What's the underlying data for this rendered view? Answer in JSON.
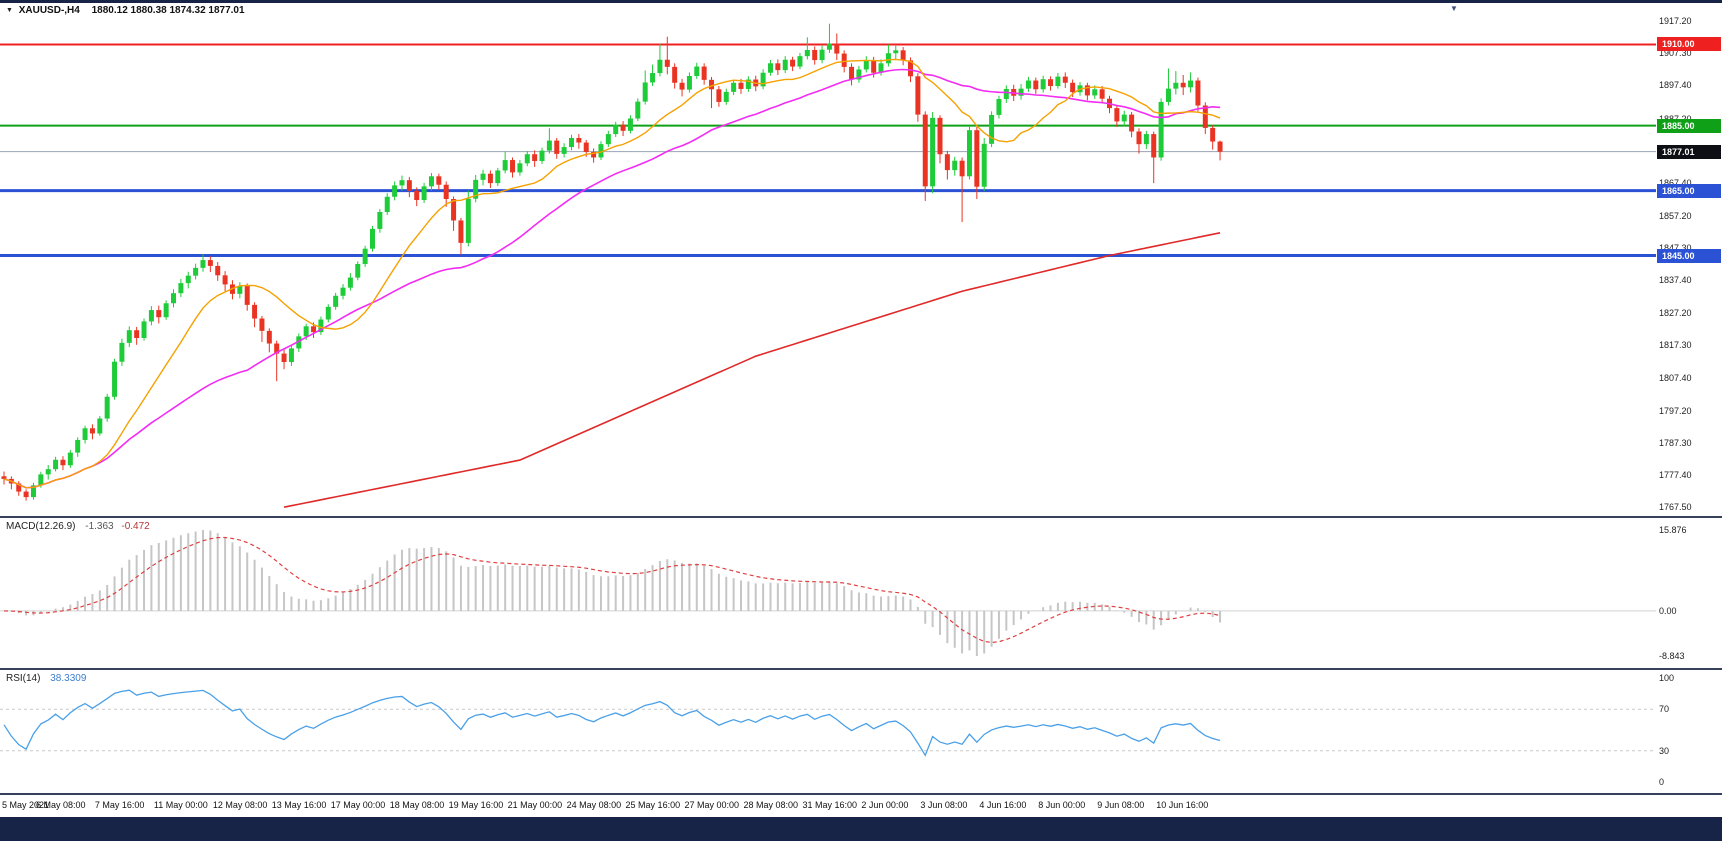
{
  "header": {
    "symbol": "XAUUSD-,H4",
    "ohlc": "1880.12 1880.38 1874.32 1877.01"
  },
  "colors": {
    "bull": "#1ecb38",
    "bear": "#ea3423",
    "ma_fast": "#f5a100",
    "ma_mid": "#f32cf3",
    "ma_slow": "#e02929",
    "macd_hist": "#c6c6c6",
    "macd_signal": "#e04040",
    "rsi": "#4aa0e8",
    "resistance_red": "#ee2020",
    "support_green": "#0fa018",
    "support_blue": "#2b52d4",
    "current_price_badge": "#0d0f14"
  },
  "price_axis": {
    "ticks": [
      "1917.20",
      "1907.30",
      "1897.40",
      "1887.20",
      "1867.40",
      "1857.20",
      "1847.30",
      "1837.40",
      "1827.20",
      "1817.30",
      "1807.40",
      "1797.20",
      "1787.30",
      "1777.40",
      "1767.50"
    ]
  },
  "price_lines": [
    {
      "price": 1910.0,
      "label": "1910.00",
      "color": "#ee2020",
      "width": 2
    },
    {
      "price": 1885.0,
      "label": "1885.00",
      "color": "#0fa018",
      "width": 2
    },
    {
      "price": 1877.01,
      "label": "1877.01",
      "color": "#0d0f14",
      "line_color": "#98a2b4",
      "width": 1
    },
    {
      "price": 1865.0,
      "label": "1865.00",
      "color": "#2b52d4",
      "width": 3
    },
    {
      "price": 1845.0,
      "label": "1845.00",
      "color": "#2b52d4",
      "width": 3
    }
  ],
  "chart_data": {
    "type": "candlestick",
    "symbol": "XAUUSD",
    "timeframe": "H4",
    "title": "XAUUSD-,H4 1880.12 1880.38 1874.32 1877.01",
    "y_range": [
      1765,
      1920
    ],
    "x_label_every_n_candles": 8,
    "x_labels": [
      "5 May 2021",
      "6 May 08:00",
      "7 May 16:00",
      "11 May 00:00",
      "12 May 08:00",
      "13 May 16:00",
      "17 May 00:00",
      "18 May 08:00",
      "19 May 16:00",
      "21 May 00:00",
      "24 May 08:00",
      "25 May 16:00",
      "27 May 00:00",
      "28 May 08:00",
      "31 May 16:00",
      "2 Jun 00:00",
      "3 Jun 08:00",
      "4 Jun 16:00",
      "8 Jun 00:00",
      "9 Jun 08:00",
      "10 Jun 16:00"
    ],
    "candles_ochl": [
      [
        1777.0,
        1776.2,
        1774.5,
        1778.5
      ],
      [
        1776.2,
        1774.8,
        1773.0,
        1777.0
      ],
      [
        1774.8,
        1772.3,
        1771.0,
        1775.5
      ],
      [
        1772.3,
        1770.6,
        1769.5,
        1773.0
      ],
      [
        1770.6,
        1774.2,
        1769.8,
        1775.0
      ],
      [
        1774.2,
        1777.6,
        1773.5,
        1778.4
      ],
      [
        1777.6,
        1779.2,
        1776.0,
        1780.5
      ],
      [
        1779.2,
        1782.1,
        1778.5,
        1783.0
      ],
      [
        1782.1,
        1780.4,
        1778.9,
        1783.2
      ],
      [
        1780.4,
        1784.3,
        1779.6,
        1785.1
      ],
      [
        1784.3,
        1788.2,
        1783.0,
        1789.0
      ],
      [
        1788.2,
        1791.8,
        1787.1,
        1792.6
      ],
      [
        1791.8,
        1790.2,
        1788.4,
        1793.0
      ],
      [
        1790.2,
        1794.8,
        1789.5,
        1795.6
      ],
      [
        1794.8,
        1801.5,
        1793.8,
        1802.4
      ],
      [
        1801.5,
        1812.3,
        1800.6,
        1813.2
      ],
      [
        1812.3,
        1818.1,
        1811.0,
        1819.4
      ],
      [
        1818.1,
        1822.0,
        1816.8,
        1823.2
      ],
      [
        1822.0,
        1819.6,
        1817.5,
        1823.0
      ],
      [
        1819.6,
        1824.7,
        1818.8,
        1825.6
      ],
      [
        1824.7,
        1828.2,
        1823.5,
        1829.4
      ],
      [
        1828.2,
        1826.0,
        1824.1,
        1829.6
      ],
      [
        1826.0,
        1830.3,
        1825.2,
        1831.2
      ],
      [
        1830.3,
        1833.4,
        1829.0,
        1834.6
      ],
      [
        1833.4,
        1836.5,
        1832.2,
        1837.8
      ],
      [
        1836.5,
        1838.8,
        1834.9,
        1840.0
      ],
      [
        1838.8,
        1841.2,
        1837.6,
        1842.5
      ],
      [
        1841.2,
        1843.6,
        1840.0,
        1845.4
      ],
      [
        1843.6,
        1841.8,
        1839.9,
        1844.8
      ],
      [
        1841.8,
        1838.9,
        1837.2,
        1843.0
      ],
      [
        1838.9,
        1836.1,
        1834.0,
        1840.2
      ],
      [
        1836.1,
        1833.2,
        1831.5,
        1837.4
      ],
      [
        1833.2,
        1835.6,
        1831.8,
        1836.8
      ],
      [
        1835.6,
        1829.8,
        1828.0,
        1836.4
      ],
      [
        1829.8,
        1825.6,
        1822.9,
        1830.6
      ],
      [
        1825.6,
        1821.8,
        1818.4,
        1826.4
      ],
      [
        1821.8,
        1817.9,
        1815.2,
        1822.6
      ],
      [
        1817.9,
        1814.8,
        1806.3,
        1818.8
      ],
      [
        1814.8,
        1812.2,
        1810.0,
        1816.0
      ],
      [
        1812.2,
        1816.4,
        1811.0,
        1817.2
      ],
      [
        1816.4,
        1820.1,
        1815.3,
        1821.0
      ],
      [
        1820.1,
        1823.2,
        1819.0,
        1824.0
      ],
      [
        1823.2,
        1821.4,
        1819.6,
        1824.4
      ],
      [
        1821.4,
        1825.3,
        1820.5,
        1826.2
      ],
      [
        1825.3,
        1829.2,
        1824.4,
        1830.0
      ],
      [
        1829.2,
        1832.6,
        1828.3,
        1833.5
      ],
      [
        1832.6,
        1835.1,
        1831.5,
        1836.2
      ],
      [
        1835.1,
        1838.2,
        1834.2,
        1839.6
      ],
      [
        1838.2,
        1842.4,
        1837.4,
        1843.2
      ],
      [
        1842.4,
        1847.1,
        1841.5,
        1848.0
      ],
      [
        1847.1,
        1853.2,
        1846.2,
        1854.1
      ],
      [
        1853.2,
        1858.4,
        1852.0,
        1859.3
      ],
      [
        1858.4,
        1863.1,
        1857.5,
        1864.2
      ],
      [
        1863.1,
        1866.6,
        1862.0,
        1867.8
      ],
      [
        1866.6,
        1868.2,
        1864.9,
        1869.6
      ],
      [
        1868.2,
        1864.9,
        1863.0,
        1869.2
      ],
      [
        1864.9,
        1862.1,
        1860.2,
        1866.0
      ],
      [
        1862.1,
        1866.3,
        1861.2,
        1867.4
      ],
      [
        1866.3,
        1869.4,
        1865.0,
        1870.4
      ],
      [
        1869.4,
        1866.8,
        1865.2,
        1870.2
      ],
      [
        1866.8,
        1862.4,
        1860.0,
        1867.8
      ],
      [
        1862.4,
        1855.8,
        1852.6,
        1863.2
      ],
      [
        1855.8,
        1848.9,
        1845.2,
        1856.6
      ],
      [
        1848.9,
        1862.5,
        1847.8,
        1865.0
      ],
      [
        1862.5,
        1868.3,
        1861.4,
        1869.8
      ],
      [
        1868.3,
        1870.2,
        1866.6,
        1871.4
      ],
      [
        1870.2,
        1867.3,
        1865.8,
        1871.2
      ],
      [
        1867.3,
        1871.2,
        1866.4,
        1872.0
      ],
      [
        1871.2,
        1874.4,
        1870.3,
        1877.0
      ],
      [
        1874.4,
        1870.6,
        1869.0,
        1875.2
      ],
      [
        1870.6,
        1873.4,
        1869.6,
        1874.4
      ],
      [
        1873.4,
        1876.2,
        1872.5,
        1877.2
      ],
      [
        1876.2,
        1874.1,
        1872.3,
        1877.4
      ],
      [
        1874.1,
        1877.3,
        1873.2,
        1878.2
      ],
      [
        1877.3,
        1880.4,
        1876.4,
        1884.2
      ],
      [
        1880.4,
        1876.3,
        1874.8,
        1881.2
      ],
      [
        1876.3,
        1878.4,
        1875.2,
        1879.6
      ],
      [
        1878.4,
        1881.2,
        1877.4,
        1882.2
      ],
      [
        1881.2,
        1879.8,
        1877.9,
        1882.4
      ],
      [
        1879.8,
        1876.9,
        1875.4,
        1880.6
      ],
      [
        1876.9,
        1875.2,
        1873.6,
        1878.0
      ],
      [
        1875.2,
        1879.3,
        1874.4,
        1880.2
      ],
      [
        1879.3,
        1882.4,
        1878.4,
        1883.4
      ],
      [
        1882.4,
        1885.3,
        1881.5,
        1886.2
      ],
      [
        1885.3,
        1883.4,
        1881.8,
        1886.4
      ],
      [
        1883.4,
        1887.2,
        1882.6,
        1888.2
      ],
      [
        1887.2,
        1892.4,
        1886.4,
        1893.4
      ],
      [
        1892.4,
        1898.3,
        1891.5,
        1902.0
      ],
      [
        1898.3,
        1901.2,
        1897.2,
        1903.8
      ],
      [
        1901.2,
        1905.3,
        1900.2,
        1910.2
      ],
      [
        1905.3,
        1903.1,
        1900.8,
        1912.4
      ],
      [
        1903.1,
        1898.2,
        1896.4,
        1904.2
      ],
      [
        1898.2,
        1896.1,
        1894.0,
        1899.4
      ],
      [
        1896.1,
        1900.3,
        1895.2,
        1901.4
      ],
      [
        1900.3,
        1903.2,
        1899.4,
        1904.4
      ],
      [
        1903.2,
        1899.1,
        1897.6,
        1904.2
      ],
      [
        1899.1,
        1896.2,
        1890.4,
        1900.0
      ],
      [
        1896.2,
        1892.3,
        1890.8,
        1897.2
      ],
      [
        1892.3,
        1895.4,
        1891.4,
        1896.4
      ],
      [
        1895.4,
        1898.2,
        1894.4,
        1899.2
      ],
      [
        1898.2,
        1896.3,
        1894.8,
        1899.4
      ],
      [
        1896.3,
        1899.2,
        1895.4,
        1900.2
      ],
      [
        1899.2,
        1897.1,
        1895.6,
        1900.4
      ],
      [
        1897.1,
        1901.3,
        1896.2,
        1902.4
      ],
      [
        1901.3,
        1904.2,
        1900.4,
        1905.2
      ],
      [
        1904.2,
        1902.1,
        1900.6,
        1905.4
      ],
      [
        1902.1,
        1905.3,
        1901.2,
        1906.4
      ],
      [
        1905.3,
        1903.2,
        1901.8,
        1906.2
      ],
      [
        1903.2,
        1906.4,
        1902.4,
        1907.4
      ],
      [
        1906.4,
        1908.3,
        1905.4,
        1912.2
      ],
      [
        1908.3,
        1905.2,
        1903.8,
        1909.4
      ],
      [
        1905.2,
        1908.4,
        1904.2,
        1909.6
      ],
      [
        1908.4,
        1910.3,
        1907.4,
        1916.4
      ],
      [
        1910.3,
        1907.2,
        1905.2,
        1913.4
      ],
      [
        1907.2,
        1903.1,
        1901.4,
        1908.2
      ],
      [
        1903.1,
        1899.2,
        1897.4,
        1904.2
      ],
      [
        1899.2,
        1902.3,
        1898.2,
        1903.4
      ],
      [
        1902.3,
        1905.2,
        1901.4,
        1906.4
      ],
      [
        1905.2,
        1901.3,
        1899.8,
        1906.2
      ],
      [
        1901.3,
        1904.2,
        1900.4,
        1905.4
      ],
      [
        1904.2,
        1907.3,
        1903.2,
        1910.0
      ],
      [
        1907.3,
        1908.2,
        1905.4,
        1909.6
      ],
      [
        1908.2,
        1905.1,
        1903.6,
        1909.2
      ],
      [
        1905.1,
        1900.2,
        1898.4,
        1906.0
      ],
      [
        1900.2,
        1888.4,
        1886.2,
        1901.2
      ],
      [
        1888.4,
        1866.3,
        1861.8,
        1889.4
      ],
      [
        1866.3,
        1887.4,
        1864.2,
        1889.2
      ],
      [
        1887.4,
        1876.2,
        1873.4,
        1888.2
      ],
      [
        1876.2,
        1871.3,
        1868.4,
        1877.2
      ],
      [
        1871.3,
        1874.2,
        1869.6,
        1875.4
      ],
      [
        1874.2,
        1869.4,
        1855.3,
        1875.2
      ],
      [
        1869.4,
        1883.6,
        1868.4,
        1885.0
      ],
      [
        1883.6,
        1866.2,
        1862.4,
        1884.6
      ],
      [
        1866.2,
        1879.4,
        1864.8,
        1881.2
      ],
      [
        1879.4,
        1888.3,
        1878.4,
        1889.4
      ],
      [
        1888.3,
        1893.2,
        1887.2,
        1894.2
      ],
      [
        1893.2,
        1896.3,
        1892.0,
        1897.4
      ],
      [
        1896.3,
        1894.2,
        1892.6,
        1897.6
      ],
      [
        1894.2,
        1896.4,
        1893.0,
        1897.8
      ],
      [
        1896.4,
        1898.9,
        1895.4,
        1900.0
      ],
      [
        1898.9,
        1896.2,
        1894.8,
        1899.8
      ],
      [
        1896.2,
        1899.3,
        1895.2,
        1900.4
      ],
      [
        1899.3,
        1897.2,
        1895.8,
        1900.2
      ],
      [
        1897.2,
        1900.1,
        1896.4,
        1901.2
      ],
      [
        1900.1,
        1898.2,
        1896.6,
        1901.4
      ],
      [
        1898.2,
        1895.3,
        1893.8,
        1899.2
      ],
      [
        1895.3,
        1897.4,
        1894.2,
        1898.4
      ],
      [
        1897.4,
        1894.3,
        1892.8,
        1898.2
      ],
      [
        1894.3,
        1896.2,
        1893.2,
        1897.4
      ],
      [
        1896.2,
        1893.3,
        1891.8,
        1897.2
      ],
      [
        1893.3,
        1890.4,
        1888.8,
        1894.2
      ],
      [
        1890.4,
        1886.3,
        1884.6,
        1891.2
      ],
      [
        1886.3,
        1888.4,
        1884.8,
        1889.6
      ],
      [
        1888.4,
        1883.2,
        1881.4,
        1889.2
      ],
      [
        1883.2,
        1879.3,
        1876.4,
        1884.2
      ],
      [
        1879.3,
        1882.4,
        1877.8,
        1883.4
      ],
      [
        1882.4,
        1875.2,
        1867.3,
        1883.2
      ],
      [
        1875.2,
        1892.3,
        1874.2,
        1893.4
      ],
      [
        1892.3,
        1896.4,
        1891.2,
        1902.6
      ],
      [
        1896.4,
        1898.2,
        1894.6,
        1901.8
      ],
      [
        1898.2,
        1896.8,
        1894.4,
        1900.6
      ],
      [
        1896.8,
        1898.9,
        1895.2,
        1901.4
      ],
      [
        1898.9,
        1891.2,
        1889.4,
        1899.8
      ],
      [
        1891.2,
        1884.3,
        1882.4,
        1892.2
      ],
      [
        1884.3,
        1880.1,
        1877.6,
        1885.2
      ],
      [
        1880.1,
        1877.0,
        1874.3,
        1880.4
      ]
    ],
    "overlays": [
      {
        "name": "ma-fast",
        "type": "sma",
        "period": 13,
        "color": "#f5a100"
      },
      {
        "name": "ma-mid",
        "type": "sma",
        "period": 34,
        "color": "#f32cf3"
      },
      {
        "name": "ma-slow",
        "type": "anchor-line",
        "color": "#e02929",
        "points": [
          [
            38,
            1767.5
          ],
          [
            70,
            1782.0
          ],
          [
            102,
            1814.0
          ],
          [
            130,
            1834.0
          ],
          [
            150,
            1845.0
          ],
          [
            165,
            1852.0
          ]
        ]
      }
    ],
    "indicators": [
      {
        "name": "MACD",
        "label": "MACD(12.26.9)",
        "value_main": "-1.363",
        "value_signal": "-0.472",
        "params": [
          12,
          26,
          9
        ],
        "axis_labels": [
          "15.876",
          "0.00",
          "-8.843"
        ]
      },
      {
        "name": "RSI",
        "label": "RSI(14)",
        "value": "38.3309",
        "period": 14,
        "levels": [
          70,
          30
        ],
        "axis_labels": [
          "100",
          "70",
          "30",
          "0"
        ]
      }
    ]
  }
}
